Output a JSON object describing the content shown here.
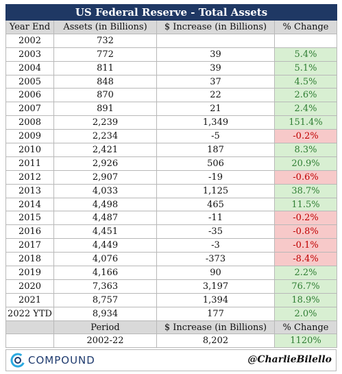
{
  "table": {
    "title": "US Federal Reserve - Total Assets",
    "columns": [
      "Year End",
      "Assets (in Billions)",
      "$ Increase (in Billions)",
      "% Change"
    ],
    "rows": [
      {
        "year": "2002",
        "assets": "732"
      },
      {
        "year": "2003",
        "assets": "772",
        "increase": "39",
        "change": "5.4%"
      },
      {
        "year": "2004",
        "assets": "811",
        "increase": "39",
        "change": "5.1%"
      },
      {
        "year": "2005",
        "assets": "848",
        "increase": "37",
        "change": "4.5%"
      },
      {
        "year": "2006",
        "assets": "870",
        "increase": "22",
        "change": "2.6%"
      },
      {
        "year": "2007",
        "assets": "891",
        "increase": "21",
        "change": "2.4%"
      },
      {
        "year": "2008",
        "assets": "2,239",
        "increase": "1,349",
        "change": "151.4%"
      },
      {
        "year": "2009",
        "assets": "2,234",
        "increase": "-5",
        "change": "-0.2%"
      },
      {
        "year": "2010",
        "assets": "2,421",
        "increase": "187",
        "change": "8.3%"
      },
      {
        "year": "2011",
        "assets": "2,926",
        "increase": "506",
        "change": "20.9%"
      },
      {
        "year": "2012",
        "assets": "2,907",
        "increase": "-19",
        "change": "-0.6%"
      },
      {
        "year": "2013",
        "assets": "4,033",
        "increase": "1,125",
        "change": "38.7%"
      },
      {
        "year": "2014",
        "assets": "4,498",
        "increase": "465",
        "change": "11.5%"
      },
      {
        "year": "2015",
        "assets": "4,487",
        "increase": "-11",
        "change": "-0.2%"
      },
      {
        "year": "2016",
        "assets": "4,451",
        "increase": "-35",
        "change": "-0.8%"
      },
      {
        "year": "2017",
        "assets": "4,449",
        "increase": "-3",
        "change": "-0.1%"
      },
      {
        "year": "2018",
        "assets": "4,076",
        "increase": "-373",
        "change": "-8.4%"
      },
      {
        "year": "2019",
        "assets": "4,166",
        "increase": "90",
        "change": "2.2%"
      },
      {
        "year": "2020",
        "assets": "7,363",
        "increase": "3,197",
        "change": "76.7%"
      },
      {
        "year": "2021",
        "assets": "8,757",
        "increase": "1,394",
        "change": "18.9%"
      },
      {
        "year": "2022 YTD",
        "assets": "8,934",
        "increase": "177",
        "change": "2.0%"
      }
    ],
    "summary": {
      "columns": [
        "Period",
        "$ Increase (in Billions)",
        "% Change"
      ],
      "values": [
        "2002-22",
        "8,202",
        "1120%"
      ]
    }
  },
  "footer": {
    "brand": "COMPOUND",
    "handle": "@CharlieBilello"
  }
}
